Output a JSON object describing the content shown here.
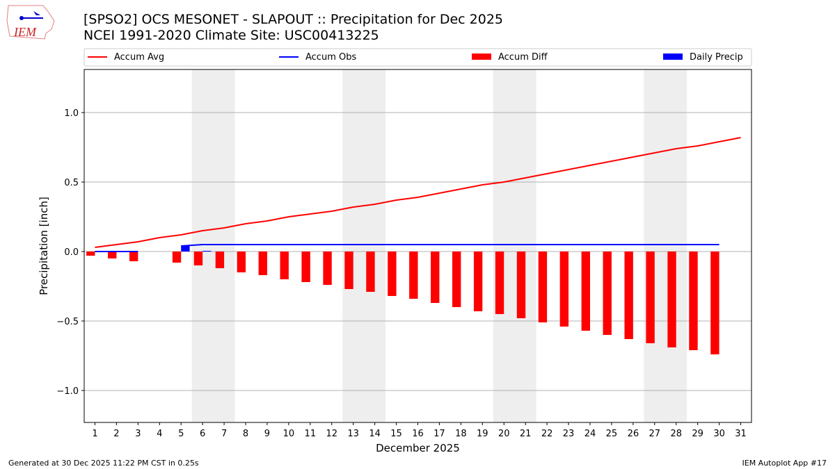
{
  "header": {
    "title": "[SPSO2] OCS MESONET - SLAPOUT :: Precipitation for Dec 2025",
    "subtitle": "NCEI 1991-2020 Climate Site: USC00413225",
    "logo_text": "IEM"
  },
  "footer": {
    "left": "Generated at 30 Dec 2025 11:22 PM CST in 0.25s",
    "right": "IEM Autoplot App #17"
  },
  "chart_data": {
    "type": "bar",
    "xlabel": "December 2025",
    "ylabel": "Precipitation [inch]",
    "xlim": [
      0.5,
      31.5
    ],
    "ylim": [
      -1.23,
      1.31
    ],
    "yticks": [
      -1.0,
      -0.5,
      0.0,
      0.5,
      1.0
    ],
    "ytick_labels": [
      "−1.0",
      "−0.5",
      "0.0",
      "0.5",
      "1.0"
    ],
    "x": [
      1,
      2,
      3,
      4,
      5,
      6,
      7,
      8,
      9,
      10,
      11,
      12,
      13,
      14,
      15,
      16,
      17,
      18,
      19,
      20,
      21,
      22,
      23,
      24,
      25,
      26,
      27,
      28,
      29,
      30,
      31
    ],
    "grid": "horizontal",
    "legend": "top",
    "weekend_shading": [
      [
        5.5,
        7.5
      ],
      [
        12.5,
        14.5
      ],
      [
        19.5,
        21.5
      ],
      [
        26.5,
        28.5
      ]
    ],
    "series": [
      {
        "name": "Accum Avg",
        "type": "line",
        "color": "#ff0000",
        "values": [
          0.03,
          0.05,
          0.07,
          0.1,
          0.12,
          0.15,
          0.17,
          0.2,
          0.22,
          0.25,
          0.27,
          0.29,
          0.32,
          0.34,
          0.37,
          0.39,
          0.42,
          0.45,
          0.48,
          0.5,
          0.53,
          0.56,
          0.59,
          0.62,
          0.65,
          0.68,
          0.71,
          0.74,
          0.76,
          0.79,
          0.82
        ]
      },
      {
        "name": "Accum Obs",
        "type": "line",
        "color": "#0000ff",
        "values": [
          0,
          0,
          0,
          null,
          0.04,
          0.05,
          0.05,
          0.05,
          0.05,
          0.05,
          0.05,
          0.05,
          0.05,
          0.05,
          0.05,
          0.05,
          0.05,
          0.05,
          0.05,
          0.05,
          0.05,
          0.05,
          0.05,
          0.05,
          0.05,
          0.05,
          0.05,
          0.05,
          0.05,
          0.05,
          null
        ]
      },
      {
        "name": "Accum Diff",
        "type": "bar",
        "color": "#ff0000",
        "values": [
          -0.03,
          -0.05,
          -0.07,
          null,
          -0.08,
          -0.1,
          -0.12,
          -0.15,
          -0.17,
          -0.2,
          -0.22,
          -0.24,
          -0.27,
          -0.29,
          -0.32,
          -0.34,
          -0.37,
          -0.4,
          -0.43,
          -0.45,
          -0.48,
          -0.51,
          -0.54,
          -0.57,
          -0.6,
          -0.63,
          -0.66,
          -0.69,
          -0.71,
          -0.74,
          null
        ]
      },
      {
        "name": "Daily Precip",
        "type": "bar",
        "color": "#0000ff",
        "values": [
          0,
          0,
          0,
          null,
          0.04,
          0.005,
          0,
          0,
          0,
          0,
          0,
          0,
          0,
          0,
          0,
          0,
          0,
          0,
          0,
          0,
          0,
          0,
          0,
          0,
          0,
          0,
          0,
          0,
          0,
          0,
          null
        ]
      }
    ]
  }
}
